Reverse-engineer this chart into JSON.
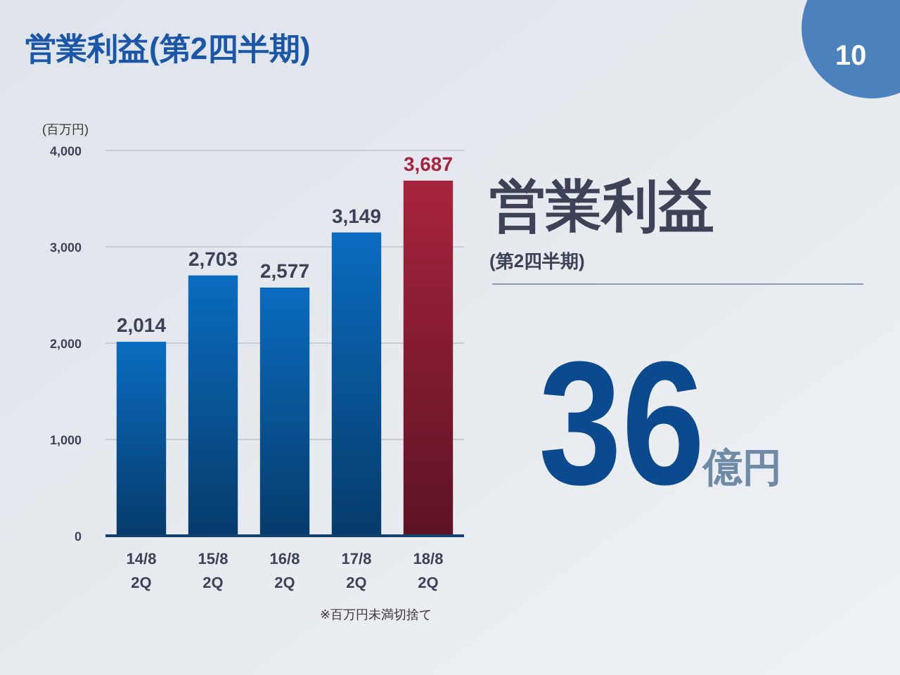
{
  "chart_data": [
    {
      "type": "bar",
      "title": "営業利益(第2四半期)",
      "ylabel": "(百万円)",
      "categories": [
        "14/8\n2Q",
        "15/8\n2Q",
        "16/8\n2Q",
        "17/8\n2Q",
        "18/8\n2Q"
      ],
      "values": [
        2014,
        2703,
        2577,
        3149,
        3687
      ],
      "colors": [
        "#0a6cc0",
        "#0a6cc0",
        "#0a6cc0",
        "#0a6cc0",
        "#a8233f"
      ],
      "ylim": [
        0,
        4000
      ],
      "yticks": [
        {
          "value": 0,
          "label": "0"
        },
        {
          "value": 1000,
          "label": "1,000"
        },
        {
          "value": 2000,
          "label": "2,000"
        },
        {
          "value": 3000,
          "label": "3,000"
        },
        {
          "value": 4000,
          "label": "4,000"
        }
      ],
      "grid": "y",
      "value_labels": [
        "2,014",
        "2,703",
        "2,577",
        "3,149",
        "3,687"
      ],
      "annotations": [
        "※百万円未満切捨て"
      ]
    },
    {
      "type": "other",
      "title": "営業利益",
      "subtitle": "(第2四半期)",
      "annotations": [
        "36",
        "億円",
        "10"
      ]
    }
  ]
}
